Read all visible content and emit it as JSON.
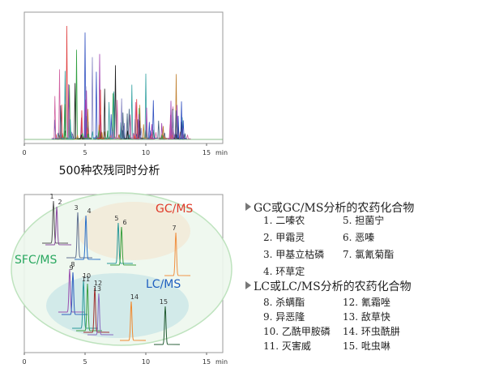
{
  "top_chart": {
    "xlim": [
      0,
      16
    ],
    "xticks": [
      0,
      5,
      10,
      15
    ],
    "x_unit": "min",
    "caption": "500种农残同时分析"
  },
  "bottom_chart": {
    "xlim": [
      0,
      16
    ],
    "xticks": [
      0,
      5,
      10,
      15
    ],
    "x_unit": "min",
    "groups": [
      {
        "label": "GC/MS",
        "color": "#e03a2a"
      },
      {
        "label": "SFC/MS",
        "color": "#2aa860"
      },
      {
        "label": "LC/MS",
        "color": "#2060c0"
      }
    ],
    "peaks": [
      {
        "label": "1",
        "rt": 2.4,
        "color": "#555555"
      },
      {
        "label": "2",
        "rt": 2.67,
        "color": "#8a4aa0"
      },
      {
        "label": "3",
        "rt": 4.4,
        "color": "#607090"
      },
      {
        "label": "4",
        "rt": 5.07,
        "color": "#2a70c8"
      },
      {
        "label": "5",
        "rt": 7.73,
        "color": "#2a9a9a"
      },
      {
        "label": "6",
        "rt": 8.0,
        "color": "#3aa040"
      },
      {
        "label": "7",
        "rt": 12.47,
        "color": "#f09040"
      },
      {
        "label": "8",
        "rt": 3.73,
        "color": "#9a50b0"
      },
      {
        "label": "9",
        "rt": 4.0,
        "color": "#3060c0"
      },
      {
        "label": "10",
        "rt": 4.87,
        "color": "#2a9a9a"
      },
      {
        "label": "11",
        "rt": 5.2,
        "color": "#40a040"
      },
      {
        "label": "12",
        "rt": 5.8,
        "color": "#a03030"
      },
      {
        "label": "13",
        "rt": 6.13,
        "color": "#8a6ac0"
      },
      {
        "label": "14",
        "rt": 8.8,
        "color": "#f08a30"
      },
      {
        "label": "15",
        "rt": 11.6,
        "color": "#205a30"
      }
    ]
  },
  "legend": {
    "sections": [
      {
        "title": "GC或GC/MS分析的农药化合物",
        "items": [
          "1. 二嗪农",
          "5. 担菌宁",
          "2. 甲霜灵",
          "6. 恶嗪",
          "3. 甲基立枯磷",
          "7. 氯氰菊酯",
          "4. 环草定"
        ]
      },
      {
        "title": "LC或LC/MS分析的农药化合物",
        "items": [
          "8. 杀螨酯",
          "12. 氰霜唑",
          "9. 异恶隆",
          "13. 敌草快",
          "10. 乙酰甲胺磷",
          "14. 环虫酰肼",
          "11. 灭害威",
          "15. 吡虫啉"
        ]
      }
    ]
  }
}
